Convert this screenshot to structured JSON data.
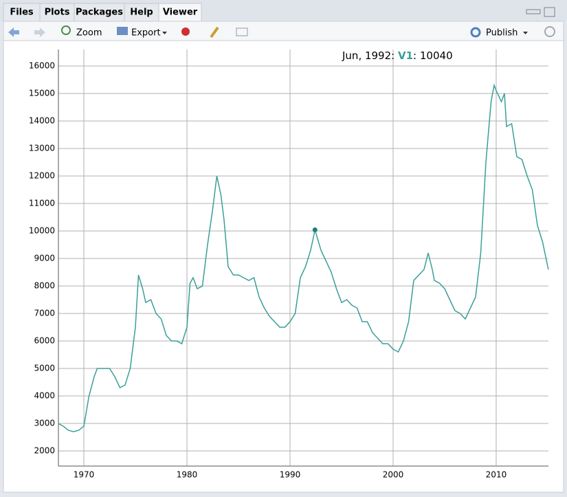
{
  "tabs": [
    "Files",
    "Plots",
    "Packages",
    "Help",
    "Viewer"
  ],
  "toolbar": {
    "zoom": "Zoom",
    "export": "Export",
    "publish": "Publish"
  },
  "chart_data": {
    "type": "line",
    "x": [
      1967.5,
      1968,
      1968.5,
      1969,
      1969.5,
      1970,
      1970.5,
      1971,
      1971.3,
      1972,
      1972.5,
      1973,
      1973.5,
      1974,
      1974.5,
      1975,
      1975.3,
      1975.7,
      1976,
      1976.5,
      1977,
      1977.5,
      1978,
      1978.5,
      1979,
      1979.5,
      1980,
      1980.3,
      1980.6,
      1981,
      1981.5,
      1982,
      1982.5,
      1982.9,
      1983.3,
      1983.6,
      1984,
      1984.5,
      1985,
      1985.5,
      1986,
      1986.5,
      1987,
      1987.5,
      1988,
      1988.5,
      1989,
      1989.5,
      1990,
      1990.5,
      1991,
      1991.5,
      1992,
      1992.42,
      1993,
      1993.5,
      1994,
      1994.5,
      1995,
      1995.5,
      1996,
      1996.5,
      1997,
      1997.5,
      1998,
      1998.5,
      1999,
      1999.5,
      2000,
      2000.5,
      2001,
      2001.5,
      2002,
      2002.5,
      2003,
      2003.4,
      2003.8,
      2004,
      2004.5,
      2005,
      2005.5,
      2006,
      2006.5,
      2007,
      2007.5,
      2008,
      2008.5,
      2009,
      2009.5,
      2009.8,
      2010,
      2010.5,
      2010.8,
      2011,
      2011.5,
      2012,
      2012.5,
      2013,
      2013.5,
      2014,
      2014.5,
      2015,
      2015.07
    ],
    "series": [
      {
        "name": "V1",
        "color": "#3a9e98",
        "values": [
          3000,
          2900,
          2750,
          2700,
          2750,
          2900,
          4000,
          4700,
          5000,
          5000,
          5000,
          4700,
          4300,
          4400,
          5000,
          6500,
          8400,
          7900,
          7400,
          7500,
          7000,
          6800,
          6200,
          6000,
          6000,
          5900,
          6500,
          8100,
          8300,
          7900,
          8000,
          9500,
          10800,
          12000,
          11300,
          10400,
          8700,
          8400,
          8400,
          8300,
          8200,
          8300,
          7600,
          7200,
          6900,
          6700,
          6500,
          6500,
          6700,
          7000,
          8300,
          8700,
          9300,
          10040,
          9300,
          8900,
          8500,
          7900,
          7400,
          7500,
          7300,
          7200,
          6700,
          6700,
          6300,
          6100,
          5900,
          5900,
          5700,
          5600,
          6000,
          6700,
          8200,
          8400,
          8600,
          9200,
          8600,
          8200,
          8100,
          7900,
          7500,
          7100,
          7000,
          6800,
          7200,
          7600,
          9200,
          12500,
          14700,
          15300,
          15100,
          14700,
          15000,
          13800,
          13900,
          12700,
          12600,
          12000,
          11500,
          10200,
          9600,
          8700,
          8600
        ]
      }
    ],
    "xlim": [
      1967.53,
      2015.07
    ],
    "xticks": [
      1970,
      1980,
      1990,
      2000,
      2010
    ],
    "ylim": [
      1450,
      16600
    ],
    "yticks": [
      2000,
      3000,
      4000,
      5000,
      6000,
      7000,
      8000,
      9000,
      10000,
      11000,
      12000,
      13000,
      14000,
      15000,
      16000
    ],
    "grid": true,
    "legend": {
      "x_label": "Jun, 1992",
      "separator": ":",
      "x": 1992.42,
      "value": 10040
    }
  }
}
